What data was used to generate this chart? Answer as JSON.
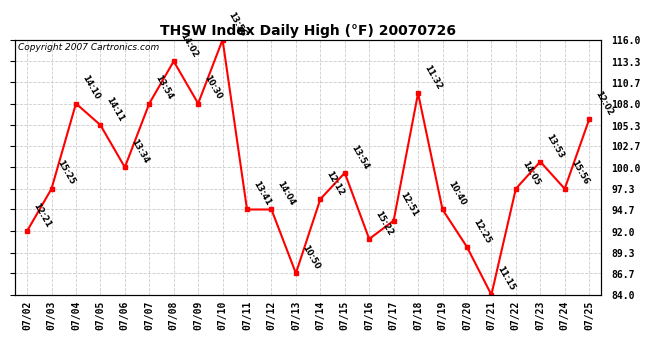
{
  "title": "THSW Index Daily High (°F) 20070726",
  "copyright": "Copyright 2007 Cartronics.com",
  "dates": [
    "07/02",
    "07/03",
    "07/04",
    "07/05",
    "07/06",
    "07/07",
    "07/08",
    "07/09",
    "07/10",
    "07/11",
    "07/12",
    "07/13",
    "07/14",
    "07/15",
    "07/16",
    "07/17",
    "07/18",
    "07/19",
    "07/20",
    "07/21",
    "07/22",
    "07/23",
    "07/24",
    "07/25"
  ],
  "values": [
    92.0,
    97.3,
    108.0,
    105.3,
    100.0,
    108.0,
    113.3,
    108.0,
    116.0,
    94.7,
    94.7,
    86.7,
    96.0,
    99.3,
    91.0,
    93.3,
    109.3,
    94.7,
    90.0,
    84.0,
    97.3,
    100.7,
    97.3,
    106.0
  ],
  "time_labels": [
    "12:21",
    "15:25",
    "14:10",
    "14:11",
    "13:34",
    "13:54",
    "14:02",
    "10:30",
    "13:56",
    "13:41",
    "14:04",
    "10:50",
    "12:12",
    "13:54",
    "15:22",
    "12:51",
    "11:32",
    "10:40",
    "12:25",
    "11:15",
    "14:05",
    "13:53",
    "15:56",
    "12:02"
  ],
  "ylim": [
    84.0,
    116.0
  ],
  "yticks": [
    84.0,
    86.7,
    89.3,
    92.0,
    94.7,
    97.3,
    100.0,
    102.7,
    105.3,
    108.0,
    110.7,
    113.3,
    116.0
  ],
  "line_color": "#ff0000",
  "marker_color": "#ff0000",
  "bg_color": "#ffffff",
  "grid_color": "#cccccc",
  "title_fontsize": 10,
  "label_fontsize": 6.0,
  "tick_fontsize": 7,
  "copyright_fontsize": 6.5
}
